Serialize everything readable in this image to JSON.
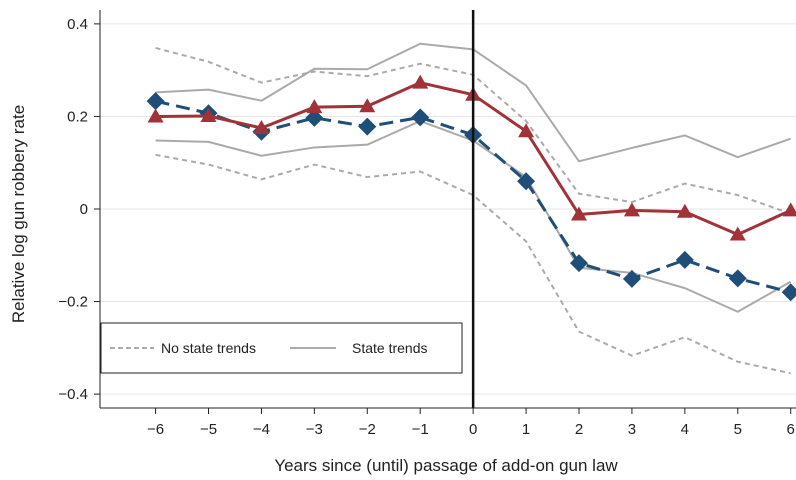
{
  "chart_data": {
    "type": "line",
    "xlabel": "Years since (until) passage of add-on gun law",
    "ylabel": "Relative log gun robbery rate",
    "x": [
      -6,
      -5,
      -4,
      -3,
      -2,
      -1,
      0,
      1,
      2,
      3,
      4,
      5,
      6
    ],
    "xlim": [
      -7.05,
      6.1
    ],
    "ylim": [
      -0.43,
      0.43
    ],
    "yticks": [
      -0.4,
      -0.2,
      0,
      0.2,
      0.4
    ],
    "ytick_labels": [
      "−0.4",
      "−0.2",
      "0",
      "0.2",
      "0.4"
    ],
    "xtick_labels": [
      "−6",
      "−5",
      "−4",
      "−3",
      "−2",
      "−1",
      "0",
      "1",
      "2",
      "3",
      "4",
      "5",
      "6"
    ],
    "vertical_line_x": 0,
    "grid": "horizontal",
    "legend_position": "lower-left",
    "legend": [
      {
        "label": "No state trends",
        "style": "dashed",
        "color": "#aaaaaa"
      },
      {
        "label": "State trends",
        "style": "solid",
        "color": "#aaaaaa"
      }
    ],
    "series": [
      {
        "key": "no_trend_estimate",
        "marker": "diamond",
        "style": "longdash",
        "color": "#1f4e79",
        "values": [
          0.233,
          0.207,
          0.167,
          0.197,
          0.178,
          0.198,
          0.16,
          0.06,
          -0.117,
          -0.151,
          -0.11,
          -0.15,
          -0.18
        ]
      },
      {
        "key": "no_trend_upper_ci",
        "style": "dashed",
        "color": "#aaaaaa",
        "values": [
          0.348,
          0.318,
          0.273,
          0.297,
          0.287,
          0.314,
          0.29,
          0.19,
          0.033,
          0.015,
          0.055,
          0.03,
          -0.01
        ]
      },
      {
        "key": "no_trend_lower_ci",
        "style": "dashed",
        "color": "#aaaaaa",
        "values": [
          0.117,
          0.096,
          0.064,
          0.096,
          0.069,
          0.081,
          0.03,
          -0.07,
          -0.265,
          -0.317,
          -0.277,
          -0.33,
          -0.355
        ]
      },
      {
        "key": "trend_estimate",
        "marker": "triangle",
        "style": "solid",
        "color": "#a03238",
        "values": [
          0.2,
          0.201,
          0.175,
          0.22,
          0.222,
          0.273,
          0.247,
          0.168,
          -0.012,
          -0.003,
          -0.006,
          -0.055,
          -0.003
        ]
      },
      {
        "key": "trend_upper_ci",
        "style": "solid",
        "color": "#aaaaaa",
        "values": [
          0.252,
          0.258,
          0.234,
          0.303,
          0.302,
          0.357,
          0.345,
          0.267,
          0.103,
          0.132,
          0.159,
          0.112,
          0.152
        ]
      },
      {
        "key": "trend_lower_ci",
        "style": "solid",
        "color": "#aaaaaa",
        "values": [
          0.148,
          0.145,
          0.115,
          0.133,
          0.139,
          0.19,
          0.148,
          0.069,
          -0.127,
          -0.138,
          -0.171,
          -0.222,
          -0.157
        ]
      }
    ]
  }
}
